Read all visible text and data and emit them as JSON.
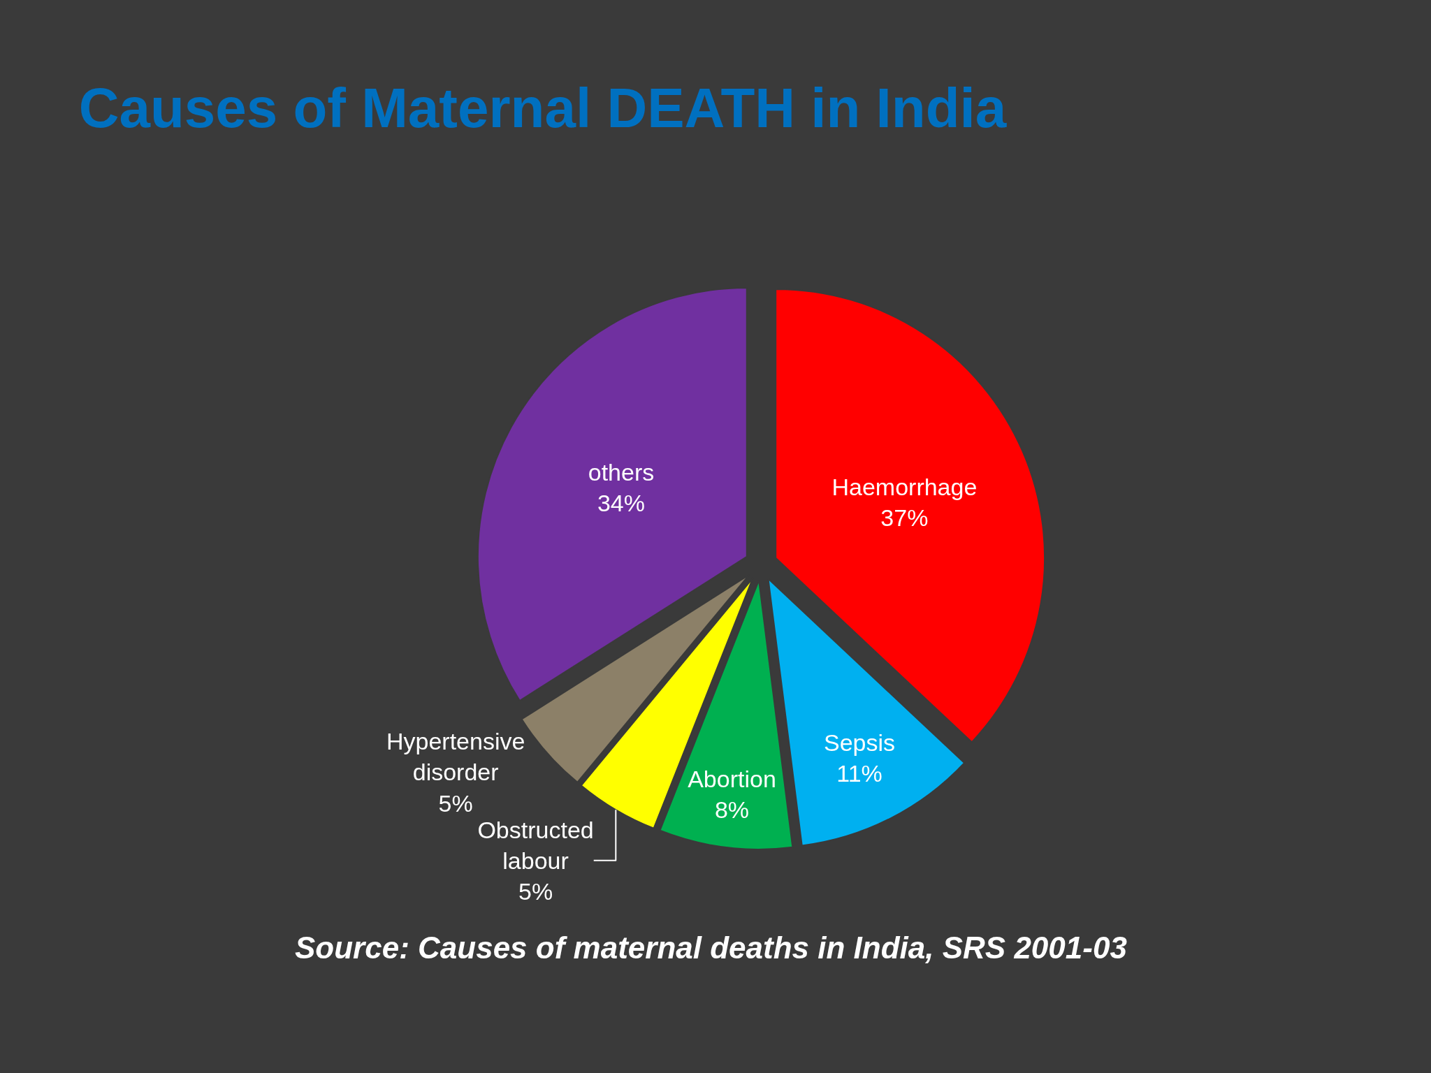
{
  "chart_data": {
    "type": "pie",
    "title": "Causes of Maternal DEATH in India",
    "categories": [
      "Haemorrhage",
      "Sepsis",
      "Abortion",
      "Obstructed labour",
      "Hypertensive disorder",
      "others"
    ],
    "values": [
      37,
      11,
      8,
      5,
      5,
      34
    ],
    "value_labels": [
      "37%",
      "11%",
      "8%",
      "5%",
      "5%",
      "34%"
    ],
    "colors": [
      "#ff0000",
      "#00b0f0",
      "#00b050",
      "#ffff00",
      "#8c8068",
      "#7030a0"
    ],
    "legend": false,
    "annotations": [
      "Source: Causes of maternal deaths in India, SRS 2001-03"
    ]
  }
}
